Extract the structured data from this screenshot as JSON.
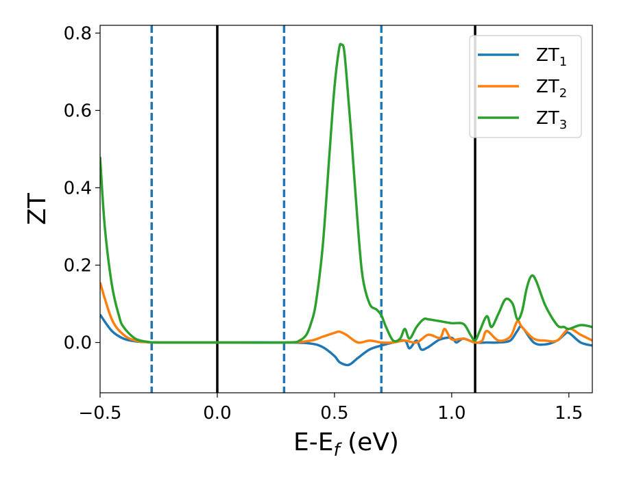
{
  "chart_data": {
    "type": "line",
    "xlabel": "E-E",
    "xlabel_sub": "f",
    "xlabel_unit": " (eV)",
    "ylabel": "ZT",
    "xlim": [
      -0.5,
      1.6
    ],
    "ylim": [
      -0.13,
      0.82
    ],
    "xticks": [
      -0.5,
      0.0,
      0.5,
      1.0,
      1.5
    ],
    "xtick_labels": [
      "−0.5",
      "0.0",
      "0.5",
      "1.0",
      "1.5"
    ],
    "yticks": [
      0.0,
      0.2,
      0.4,
      0.6,
      0.8
    ],
    "ytick_labels": [
      "0.0",
      "0.2",
      "0.4",
      "0.6",
      "0.8"
    ],
    "grid": false,
    "legend_position": "top-right",
    "vlines_solid": [
      0.0,
      1.1
    ],
    "vlines_dashed": [
      -0.28,
      0.285,
      0.7
    ],
    "vline_solid_color": "#000000",
    "vline_dashed_color": "#1f77b4",
    "series": [
      {
        "name": "ZT",
        "sub": "1",
        "color": "#1f77b4",
        "x": [
          -0.5,
          -0.45,
          -0.4,
          -0.35,
          -0.3,
          -0.25,
          -0.2,
          0.0,
          0.3,
          0.4,
          0.45,
          0.5,
          0.52,
          0.55,
          0.57,
          0.6,
          0.65,
          0.7,
          0.75,
          0.8,
          0.82,
          0.85,
          0.87,
          0.9,
          0.95,
          1.0,
          1.02,
          1.05,
          1.1,
          1.15,
          1.2,
          1.25,
          1.28,
          1.3,
          1.35,
          1.4,
          1.45,
          1.48,
          1.5,
          1.55,
          1.6
        ],
        "y": [
          0.072,
          0.03,
          0.01,
          0.003,
          0.001,
          0.0,
          0.0,
          0.0,
          0.0,
          -0.003,
          -0.012,
          -0.035,
          -0.05,
          -0.058,
          -0.055,
          -0.04,
          -0.018,
          -0.008,
          0.0,
          0.005,
          -0.015,
          0.005,
          -0.018,
          -0.012,
          0.008,
          0.012,
          0.0,
          0.01,
          0.0,
          0.0,
          0.0,
          0.005,
          0.03,
          0.04,
          0.0,
          -0.005,
          0.005,
          0.02,
          0.025,
          0.0,
          -0.008
        ]
      },
      {
        "name": "ZT",
        "sub": "2",
        "color": "#ff7f0e",
        "x": [
          -0.5,
          -0.45,
          -0.4,
          -0.35,
          -0.3,
          -0.25,
          0.0,
          0.3,
          0.4,
          0.45,
          0.5,
          0.52,
          0.55,
          0.6,
          0.65,
          0.7,
          0.75,
          0.8,
          0.85,
          0.9,
          0.95,
          0.97,
          1.0,
          1.05,
          1.1,
          1.13,
          1.15,
          1.2,
          1.25,
          1.28,
          1.3,
          1.35,
          1.4,
          1.45,
          1.5,
          1.55,
          1.6
        ],
        "y": [
          0.155,
          0.06,
          0.02,
          0.005,
          0.001,
          0.0,
          0.0,
          0.0,
          0.005,
          0.015,
          0.025,
          0.028,
          0.02,
          0.0,
          0.005,
          0.0,
          0.0,
          0.005,
          0.0,
          0.02,
          0.012,
          0.035,
          0.008,
          0.01,
          0.0,
          0.005,
          0.03,
          0.005,
          0.015,
          0.055,
          0.04,
          0.01,
          0.005,
          0.005,
          0.035,
          0.02,
          0.005
        ]
      },
      {
        "name": "ZT",
        "sub": "3",
        "color": "#2ca02c",
        "x": [
          -0.5,
          -0.48,
          -0.45,
          -0.42,
          -0.4,
          -0.35,
          -0.3,
          -0.25,
          0.0,
          0.3,
          0.35,
          0.38,
          0.4,
          0.42,
          0.45,
          0.48,
          0.5,
          0.52,
          0.53,
          0.54,
          0.55,
          0.57,
          0.6,
          0.62,
          0.65,
          0.68,
          0.7,
          0.72,
          0.75,
          0.78,
          0.8,
          0.82,
          0.85,
          0.88,
          0.9,
          0.95,
          1.0,
          1.05,
          1.08,
          1.1,
          1.12,
          1.15,
          1.17,
          1.2,
          1.23,
          1.26,
          1.28,
          1.3,
          1.32,
          1.34,
          1.36,
          1.4,
          1.45,
          1.48,
          1.5,
          1.55,
          1.6
        ],
        "y": [
          0.48,
          0.3,
          0.15,
          0.07,
          0.04,
          0.01,
          0.002,
          0.0,
          0.0,
          0.0,
          0.005,
          0.02,
          0.05,
          0.1,
          0.25,
          0.5,
          0.66,
          0.76,
          0.77,
          0.76,
          0.7,
          0.55,
          0.3,
          0.17,
          0.1,
          0.085,
          0.07,
          0.04,
          0.005,
          0.01,
          0.035,
          0.01,
          0.04,
          0.06,
          0.06,
          0.055,
          0.05,
          0.048,
          0.02,
          0.005,
          0.03,
          0.068,
          0.04,
          0.075,
          0.112,
          0.1,
          0.06,
          0.08,
          0.14,
          0.172,
          0.16,
          0.095,
          0.045,
          0.04,
          0.035,
          0.045,
          0.04
        ]
      }
    ]
  }
}
